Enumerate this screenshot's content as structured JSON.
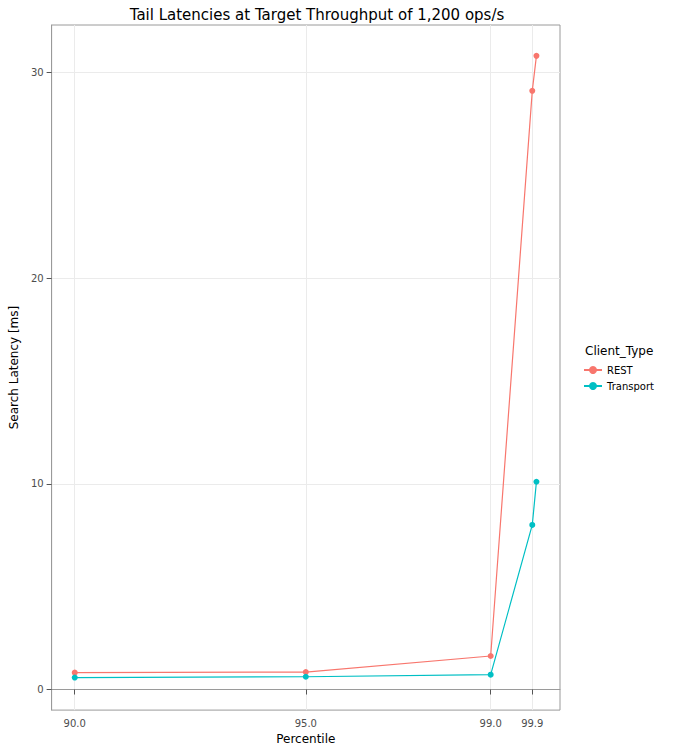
{
  "chart_data": {
    "type": "line",
    "title": "Tail Latencies at Target Throughput of 1,200 ops/s",
    "x_label": "Percentile",
    "y_label": "Search Latency [ms]",
    "legend_title": "Client_Type",
    "x": [
      90,
      95,
      99,
      99.9,
      99.99
    ],
    "series": [
      {
        "name": "REST",
        "color": "#F8766D",
        "values": [
          0.82,
          0.85,
          1.63,
          29.1,
          30.8
        ]
      },
      {
        "name": "Transport",
        "color": "#00BFC4",
        "values": [
          0.58,
          0.62,
          0.72,
          8.0,
          10.1
        ]
      }
    ],
    "xlim": [
      89.5,
      100.5
    ],
    "xticks": [
      {
        "value": 90,
        "label": "90.0"
      },
      {
        "value": 95,
        "label": "95.0"
      },
      {
        "value": 99,
        "label": "99.0"
      },
      {
        "value": 99.9,
        "label": "99.9"
      }
    ],
    "ylim": [
      -1,
      32.3
    ],
    "yticks": [
      0,
      10,
      20,
      30
    ],
    "grid": true,
    "legend": "right",
    "marker": "circle"
  }
}
